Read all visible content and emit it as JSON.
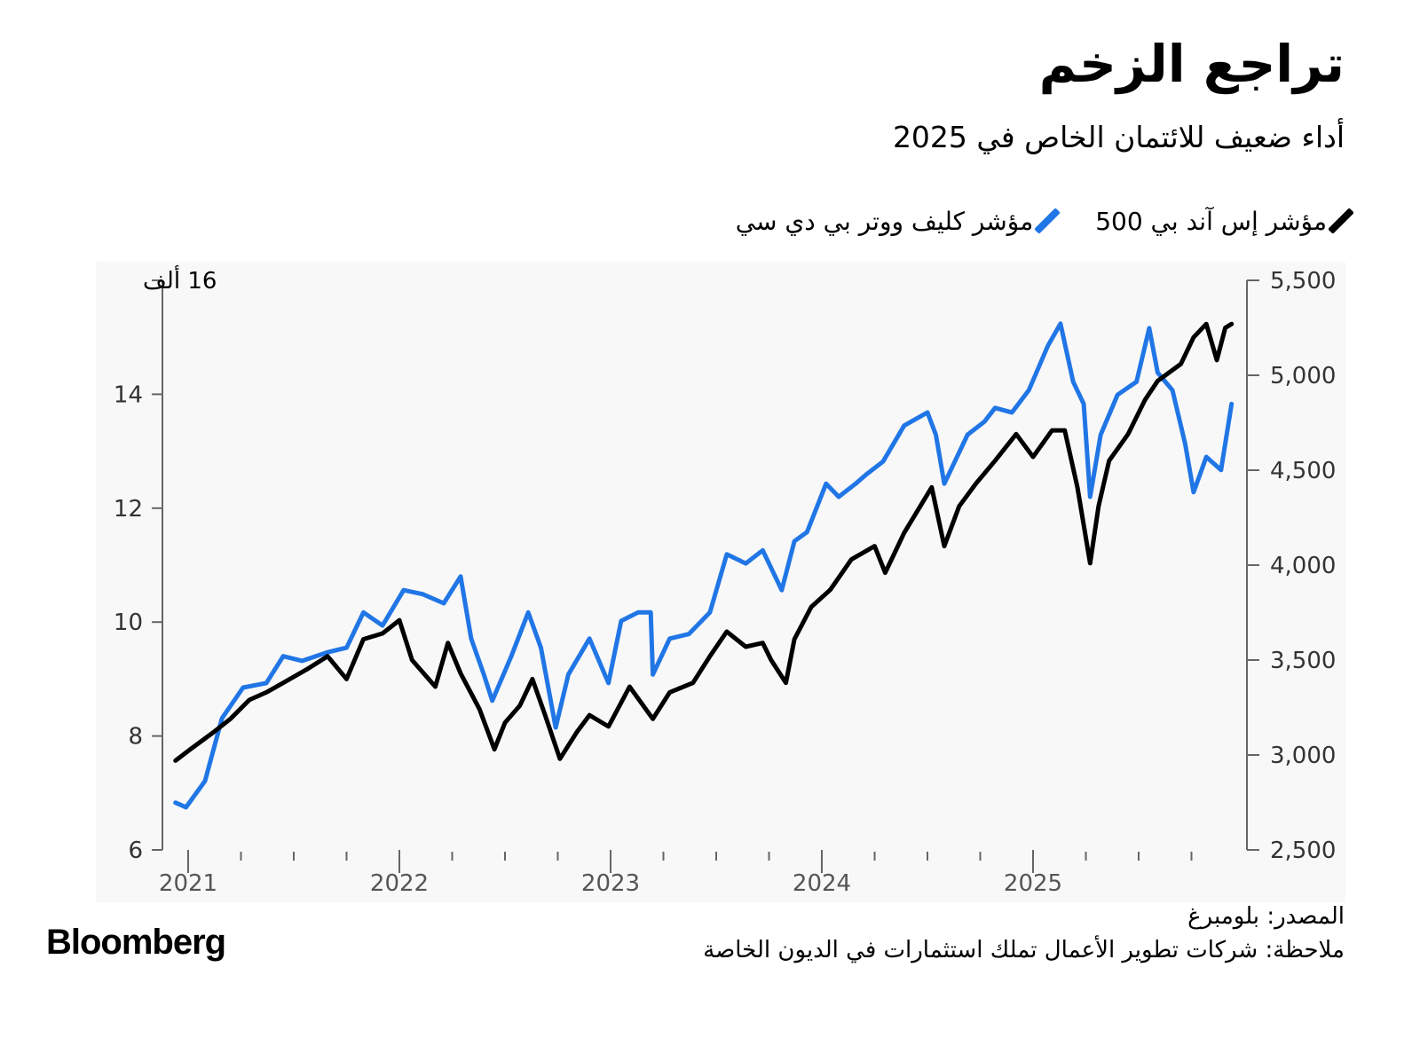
{
  "title": "تراجع الزخم",
  "subtitle": "أداء ضعيف للائتمان الخاص في 2025",
  "source": "المصدر: بلومبرغ",
  "note": "ملاحظة: شركات تطوير الأعمال تملك استثمارات في الديون الخاصة",
  "logo": "Bloomberg",
  "colors": {
    "sp500": "#000000",
    "cliffwater": "#2176e6",
    "plot_bg": "#f8f8f8",
    "axis": "#666666"
  },
  "chart_data": {
    "type": "line",
    "title": "تراجع الزخم",
    "left_axis": {
      "label": "16 ألف",
      "ylim": [
        6,
        16
      ],
      "ticks": [
        6,
        8,
        10,
        12,
        14,
        16
      ],
      "tick_labels": [
        "6",
        "8",
        "10",
        "12",
        "14",
        "16 ألف"
      ],
      "series": "cliffwater"
    },
    "right_axis": {
      "ylim": [
        2500,
        5500
      ],
      "ticks": [
        2500,
        3000,
        3500,
        4000,
        4500,
        5000,
        5500
      ],
      "tick_labels": [
        "2,500",
        "3,000",
        "3,500",
        "4,000",
        "4,500",
        "5,000",
        "5,500"
      ],
      "series": "sp500"
    },
    "x_axis": {
      "xlim": [
        2020.88,
        2026.05
      ],
      "ticks": [
        2021,
        2022,
        2023,
        2024,
        2025
      ],
      "tick_labels": [
        "2021",
        "2022",
        "2023",
        "2024",
        "2025"
      ],
      "minor_tick_step": 0.25
    },
    "series": [
      {
        "id": "sp500",
        "name": "مؤشر إس آند بي 500",
        "axis": "right",
        "x": [
          2020.94,
          2021.01,
          2021.12,
          2021.2,
          2021.29,
          2021.37,
          2021.45,
          2021.56,
          2021.66,
          2021.75,
          2021.83,
          2021.92,
          2022.0,
          2022.06,
          2022.17,
          2022.23,
          2022.29,
          2022.38,
          2022.45,
          2022.5,
          2022.57,
          2022.63,
          2022.69,
          2022.76,
          2022.84,
          2022.9,
          2022.99,
          2023.09,
          2023.2,
          2023.28,
          2023.39,
          2023.47,
          2023.55,
          2023.64,
          2023.72,
          2023.76,
          2023.83,
          2023.87,
          2023.95,
          2024.04,
          2024.14,
          2024.25,
          2024.3,
          2024.39,
          2024.52,
          2024.58,
          2024.65,
          2024.73,
          2024.82,
          2024.92,
          2025.0,
          2025.09,
          2025.15,
          2025.21,
          2025.27,
          2025.31,
          2025.36,
          2025.45,
          2025.53,
          2025.59,
          2025.7,
          2025.76,
          2025.82,
          2025.87,
          2025.91,
          2025.94
        ],
        "y": [
          2970,
          3030,
          3120,
          3190,
          3290,
          3330,
          3380,
          3450,
          3520,
          3400,
          3610,
          3640,
          3710,
          3500,
          3360,
          3590,
          3430,
          3240,
          3030,
          3170,
          3260,
          3400,
          3210,
          2980,
          3120,
          3210,
          3150,
          3360,
          3190,
          3330,
          3380,
          3520,
          3650,
          3570,
          3590,
          3500,
          3380,
          3610,
          3780,
          3870,
          4030,
          4100,
          3960,
          4170,
          4410,
          4100,
          4310,
          4430,
          4550,
          4690,
          4570,
          4710,
          4710,
          4410,
          4010,
          4310,
          4550,
          4690,
          4870,
          4970,
          5060,
          5200,
          5270,
          5080,
          5250,
          5270
        ]
      },
      {
        "id": "cliffwater",
        "name": "مؤشر كليف ووتر بي دي سي",
        "axis": "left",
        "x": [
          2020.94,
          2020.99,
          2021.08,
          2021.16,
          2021.26,
          2021.37,
          2021.45,
          2021.54,
          2021.66,
          2021.75,
          2021.83,
          2021.92,
          2022.02,
          2022.11,
          2022.21,
          2022.29,
          2022.34,
          2022.4,
          2022.44,
          2022.53,
          2022.61,
          2022.67,
          2022.74,
          2022.8,
          2022.9,
          2022.99,
          2023.05,
          2023.13,
          2023.19,
          2023.2,
          2023.28,
          2023.37,
          2023.47,
          2023.55,
          2023.64,
          2023.72,
          2023.81,
          2023.87,
          2023.93,
          2024.02,
          2024.08,
          2024.16,
          2024.21,
          2024.29,
          2024.39,
          2024.5,
          2024.54,
          2024.58,
          2024.69,
          2024.77,
          2024.82,
          2024.9,
          2024.98,
          2025.07,
          2025.13,
          2025.19,
          2025.24,
          2025.27,
          2025.32,
          2025.4,
          2025.49,
          2025.55,
          2025.59,
          2025.66,
          2025.72,
          2025.76,
          2025.82,
          2025.89,
          2025.94
        ],
        "y": [
          6.83,
          6.75,
          7.21,
          8.31,
          8.85,
          8.93,
          9.4,
          9.32,
          9.47,
          9.55,
          10.17,
          9.94,
          10.56,
          10.49,
          10.33,
          10.8,
          9.71,
          9.08,
          8.62,
          9.4,
          10.17,
          9.55,
          8.15,
          9.08,
          9.71,
          8.93,
          10.02,
          10.17,
          10.17,
          9.08,
          9.71,
          9.79,
          10.17,
          11.19,
          11.03,
          11.26,
          10.56,
          11.42,
          11.58,
          12.43,
          12.2,
          12.43,
          12.59,
          12.82,
          13.45,
          13.68,
          13.29,
          12.43,
          13.29,
          13.52,
          13.76,
          13.68,
          14.07,
          14.85,
          15.24,
          14.22,
          13.83,
          12.2,
          13.29,
          13.99,
          14.22,
          15.16,
          14.38,
          14.07,
          13.13,
          12.28,
          12.9,
          12.67,
          13.83
        ]
      }
    ],
    "legend": {
      "placement": "top-right"
    }
  }
}
